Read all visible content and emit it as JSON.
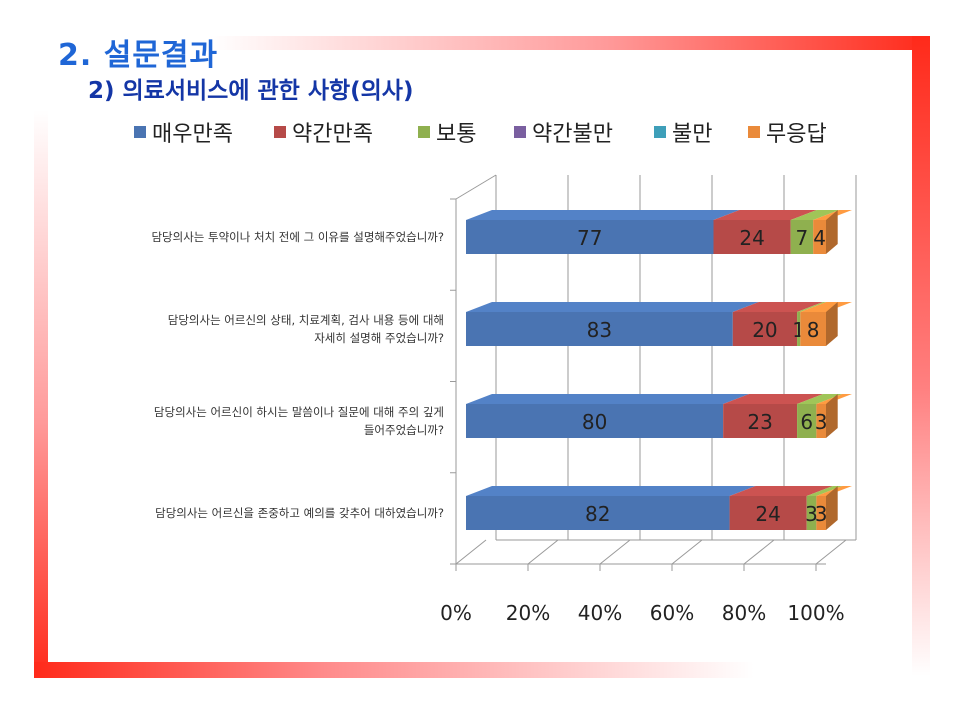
{
  "slide": {
    "title": "2. 설문결과",
    "subtitle": "2) 의료서비스에 관한 사항(의사)"
  },
  "colors": {
    "매우만족": "#4a74b2",
    "약간만족": "#b64a48",
    "보통": "#8fb04f",
    "약간불만": "#7a5fa0",
    "불만": "#3e9fb9",
    "무응답": "#ea8a3a"
  },
  "chart_data": {
    "type": "bar",
    "orientation": "horizontal",
    "stacked": "percent",
    "legend_position": "top",
    "grid": true,
    "xlim": [
      0,
      100
    ],
    "x_ticks": [
      "0%",
      "20%",
      "40%",
      "60%",
      "80%",
      "100%"
    ],
    "categories": [
      [
        "담당의사는 투약이나 처치 전에 그 이유를 설명해주었습니까?"
      ],
      [
        "담당의사는 어르신의 상태, 치료계획, 검사 내용 등에 대해",
        "자세히 설명해 주었습니까?"
      ],
      [
        "담당의사는 어르신이 하시는 말씀이나 질문에 대해 주의 깊게",
        "들어주었습니까?"
      ],
      [
        "담당의사는 어르신을 존중하고 예의를 갖추어 대하였습니까?"
      ]
    ],
    "series": [
      {
        "name": "매우만족",
        "values": [
          77,
          83,
          80,
          82
        ]
      },
      {
        "name": "약간만족",
        "values": [
          24,
          20,
          23,
          24
        ]
      },
      {
        "name": "보통",
        "values": [
          7,
          1,
          6,
          3
        ]
      },
      {
        "name": "약간불만",
        "values": [
          0,
          0,
          0,
          0
        ]
      },
      {
        "name": "불만",
        "values": [
          0,
          0,
          0,
          0
        ]
      },
      {
        "name": "무응답",
        "values": [
          4,
          8,
          3,
          3
        ]
      }
    ]
  }
}
